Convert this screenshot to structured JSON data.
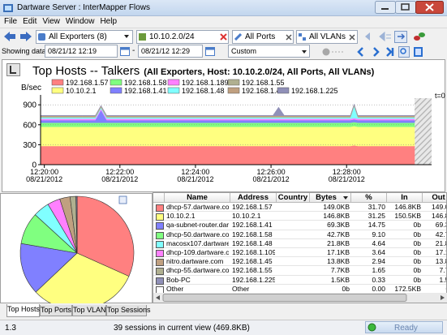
{
  "window": {
    "title": "Dartware Server : InterMapper Flows"
  },
  "menu": [
    "File",
    "Edit",
    "View",
    "Window",
    "Help"
  ],
  "toolbar": {
    "exporter": "All Exporters (8)",
    "host": "10.10.2.0/24",
    "ports": "All Ports",
    "vlans": "All VLANs"
  },
  "date_range": {
    "label": "Showing data from:",
    "from": "08/21/12 12:19",
    "separator": "-",
    "to": "08/21/12 12:29",
    "preset": "Custom"
  },
  "chart_data": [
    {
      "type": "area",
      "stacked": true,
      "title": "Top Hosts -- Talkers",
      "subtitle": "(All Exporters, Host: 10.10.2.0/24, All Ports, All VLANs)",
      "y_label": "B/sec",
      "annotation": "t=0",
      "grid": true,
      "x": [
        -0.1,
        1,
        1.35,
        1.5,
        1.65,
        2,
        3,
        4,
        5,
        6,
        6.05,
        6.2,
        6.35,
        7,
        8,
        8.1,
        8.2,
        8.3,
        9,
        9.5,
        9.8
      ],
      "xlim": [
        -0.1,
        10.25
      ],
      "xticks": [
        {
          "value": 0,
          "label": "12:20:00\n08/21/2012"
        },
        {
          "value": 2,
          "label": "12:22:00\n08/21/2012"
        },
        {
          "value": 4,
          "label": "12:24:00\n08/21/2012"
        },
        {
          "value": 6,
          "label": "12:26:00\n08/21/2012"
        },
        {
          "value": 8,
          "label": "12:28:00\n08/21/2012"
        }
      ],
      "ylim": [
        0,
        1000
      ],
      "yticks": [
        0,
        300,
        600,
        900
      ],
      "series": [
        {
          "name": "192.168.1.57",
          "color": "#ff8080",
          "values": [
            280,
            280,
            280,
            280,
            280,
            280,
            280,
            280,
            280,
            280,
            280,
            280,
            280,
            280,
            280,
            280,
            290,
            280,
            280,
            280,
            280
          ]
        },
        {
          "name": "10.10.2.1",
          "color": "#ffff80",
          "values": [
            290,
            290,
            290,
            290,
            290,
            290,
            290,
            290,
            290,
            290,
            290,
            290,
            290,
            290,
            290,
            290,
            290,
            290,
            290,
            290,
            290
          ]
        },
        {
          "name": "192.168.1.58",
          "color": "#80ff80",
          "values": [
            60,
            60,
            60,
            60,
            60,
            60,
            60,
            60,
            60,
            60,
            60,
            60,
            60,
            60,
            60,
            60,
            60,
            60,
            60,
            60,
            60
          ]
        },
        {
          "name": "192.168.1.41",
          "color": "#8080ff",
          "values": [
            40,
            40,
            40,
            190,
            40,
            40,
            40,
            40,
            40,
            40,
            40,
            40,
            40,
            40,
            40,
            40,
            40,
            40,
            40,
            40,
            40
          ]
        },
        {
          "name": "192.168.1.189",
          "color": "#ff80ff",
          "values": [
            20,
            20,
            20,
            20,
            20,
            20,
            20,
            20,
            20,
            20,
            20,
            20,
            20,
            20,
            20,
            20,
            20,
            20,
            20,
            20,
            20
          ]
        },
        {
          "name": "192.168.1.48",
          "color": "#80ffff",
          "values": [
            20,
            20,
            20,
            20,
            20,
            20,
            20,
            20,
            20,
            20,
            20,
            20,
            20,
            20,
            20,
            20,
            180,
            20,
            20,
            20,
            20
          ]
        },
        {
          "name": "192.168.1.55",
          "color": "#b0b090",
          "values": [
            15,
            15,
            15,
            15,
            15,
            15,
            15,
            15,
            15,
            15,
            15,
            15,
            15,
            15,
            15,
            15,
            15,
            15,
            15,
            15,
            15
          ]
        },
        {
          "name": "192.168.1.45",
          "color": "#c0a080",
          "values": [
            10,
            10,
            10,
            10,
            10,
            10,
            10,
            10,
            10,
            10,
            10,
            10,
            10,
            10,
            10,
            10,
            10,
            10,
            10,
            10,
            10
          ]
        },
        {
          "name": "192.168.1.225",
          "color": "#9090b8",
          "values": [
            5,
            5,
            5,
            5,
            5,
            5,
            5,
            5,
            5,
            5,
            5,
            130,
            5,
            5,
            5,
            5,
            5,
            5,
            5,
            5,
            5
          ]
        }
      ]
    },
    {
      "type": "pie",
      "values": [
        31.7,
        31.25,
        14.75,
        9.1,
        4.64,
        3.64,
        2.94,
        1.65,
        0.33,
        0.0
      ],
      "colors": [
        "#ff8080",
        "#ffff80",
        "#8080ff",
        "#80ff80",
        "#80ffff",
        "#ff80ff",
        "#c0a080",
        "#b0b090",
        "#9090b8",
        "#ffffff"
      ]
    }
  ],
  "table": {
    "columns": [
      "Name",
      "Address",
      "Country",
      "Bytes",
      "%",
      "In",
      "Out"
    ],
    "rows": [
      [
        "dhcp-57.dartware.com",
        "192.168.1.57",
        "149.0KB",
        "31.70",
        "146.8KB",
        "149.0K"
      ],
      [
        "10.10.2.1",
        "10.10.2.1",
        "146.8KB",
        "31.25",
        "150.5KB",
        "146.8K"
      ],
      [
        "qa-subnet-router.dart...",
        "192.168.1.41",
        "69.3KB",
        "14.75",
        "0b",
        "69.3K"
      ],
      [
        "dhcp-50.dartware.com",
        "192.168.1.58",
        "42.7KB",
        "9.10",
        "0b",
        "42.7K"
      ],
      [
        "macosx107.dartware.com",
        "192.168.1.48",
        "21.8KB",
        "4.64",
        "0b",
        "21.8K"
      ],
      [
        "dhcp-109.dartware.com",
        "192.168.1.109",
        "17.1KB",
        "3.64",
        "0b",
        "17.1K"
      ],
      [
        "nitro.dartware.com",
        "192.168.1.45",
        "13.8KB",
        "2.94",
        "0b",
        "13.8K"
      ],
      [
        "dhcp-55.dartware.com",
        "192.168.1.55",
        "7.7KB",
        "1.65",
        "0b",
        "7.7K"
      ],
      [
        "Bob-PC",
        "192.168.1.225",
        "1.5KB",
        "0.33",
        "0b",
        "1.5K"
      ],
      [
        "Other",
        "Other",
        "0b",
        "0.00",
        "172.5KB",
        "0b"
      ]
    ]
  },
  "tabs": [
    "Top Hosts",
    "Top Ports",
    "Top VLANs",
    "Top Sessions"
  ],
  "status": {
    "version": "1.3",
    "message": "39 sessions in current view (469.8KB)",
    "state": "Ready"
  }
}
